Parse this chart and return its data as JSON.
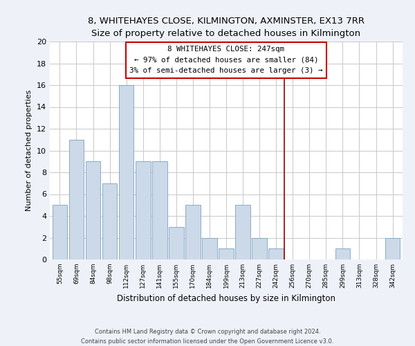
{
  "title": "8, WHITEHAYES CLOSE, KILMINGTON, AXMINSTER, EX13 7RR",
  "subtitle": "Size of property relative to detached houses in Kilmington",
  "xlabel": "Distribution of detached houses by size in Kilmington",
  "ylabel": "Number of detached properties",
  "bar_labels": [
    "55sqm",
    "69sqm",
    "84sqm",
    "98sqm",
    "112sqm",
    "127sqm",
    "141sqm",
    "155sqm",
    "170sqm",
    "184sqm",
    "199sqm",
    "213sqm",
    "227sqm",
    "242sqm",
    "256sqm",
    "270sqm",
    "285sqm",
    "299sqm",
    "313sqm",
    "328sqm",
    "342sqm"
  ],
  "bar_values": [
    5,
    11,
    9,
    7,
    16,
    9,
    9,
    3,
    5,
    2,
    1,
    5,
    2,
    1,
    0,
    0,
    0,
    1,
    0,
    0,
    2
  ],
  "bar_color": "#ccd9e8",
  "bar_edgecolor": "#7aa0c0",
  "vline_x": 13.5,
  "vline_color": "#990000",
  "annotation_title": "8 WHITEHAYES CLOSE: 247sqm",
  "annotation_line1": "← 97% of detached houses are smaller (84)",
  "annotation_line2": "3% of semi-detached houses are larger (3) →",
  "ylim": [
    0,
    20
  ],
  "yticks": [
    0,
    2,
    4,
    6,
    8,
    10,
    12,
    14,
    16,
    18,
    20
  ],
  "footer1": "Contains HM Land Registry data © Crown copyright and database right 2024.",
  "footer2": "Contains public sector information licensed under the Open Government Licence v3.0.",
  "bg_color": "#eef2f8",
  "plot_bg_color": "#ffffff",
  "grid_color": "#cccccc"
}
